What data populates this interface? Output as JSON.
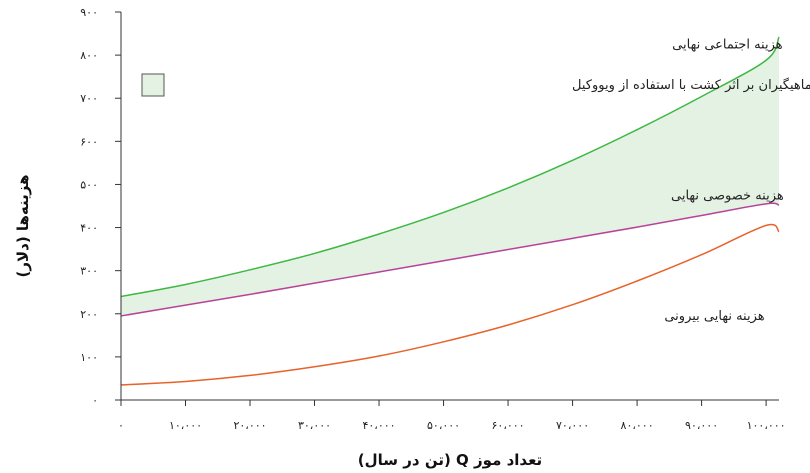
{
  "chart_data": {
    "type": "line",
    "xlabel": "تعداد موز Q (تن در سال)",
    "ylabel": "هزینه‌ها (دلار)",
    "xlim": [
      0,
      102000
    ],
    "ylim": [
      0,
      900
    ],
    "x_ticks": [
      0,
      10000,
      20000,
      30000,
      40000,
      50000,
      60000,
      70000,
      80000,
      90000,
      100000
    ],
    "x_tick_labels": [
      "۰",
      "۱۰،۰۰۰",
      "۲۰،۰۰۰",
      "۳۰،۰۰۰",
      "۴۰،۰۰۰",
      "۵۰،۰۰۰",
      "۶۰،۰۰۰",
      "۷۰،۰۰۰",
      "۸۰،۰۰۰",
      "۹۰،۰۰۰",
      "۱۰۰،۰۰۰"
    ],
    "y_ticks": [
      0,
      100,
      200,
      300,
      400,
      500,
      600,
      700,
      800,
      900
    ],
    "y_tick_labels": [
      "۰",
      "۱۰۰",
      "۲۰۰",
      "۳۰۰",
      "۴۰۰",
      "۵۰۰",
      "۶۰۰",
      "۷۰۰",
      "۸۰۰",
      "۹۰۰"
    ],
    "grid": false,
    "series": [
      {
        "name": "هزینه اجتماعی نهایی",
        "color": "#3db843",
        "x": [
          0,
          10000,
          20000,
          30000,
          40000,
          50000,
          60000,
          70000,
          80000,
          90000,
          100000,
          102000
        ],
        "y": [
          240,
          268,
          302,
          340,
          385,
          435,
          492,
          556,
          627,
          704,
          788,
          842
        ]
      },
      {
        "name": "هزینه خصوصی نهایی",
        "color": "#b9429b",
        "x": [
          0,
          10000,
          20000,
          30000,
          40000,
          50000,
          60000,
          70000,
          80000,
          90000,
          100000,
          102000
        ],
        "y": [
          195,
          220,
          245,
          271,
          297,
          323,
          349,
          375,
          401,
          428,
          455,
          452
        ]
      },
      {
        "name": "هزینه نهایی بیرونی",
        "color": "#e8622b",
        "x": [
          0,
          10000,
          20000,
          30000,
          40000,
          50000,
          60000,
          70000,
          80000,
          90000,
          100000,
          102000
        ],
        "y": [
          35,
          43,
          57,
          77,
          102,
          135,
          174,
          221,
          276,
          337,
          405,
          390
        ]
      }
    ],
    "shaded_region": {
      "label": "هزینه های تحمیل شده بر ماهیگیران بر اثر کشت با استفاده از ویووکیل",
      "fill_color": "#e4f2e4",
      "between": [
        "هزینه اجتماعی نهایی",
        "هزینه خصوصی نهایی"
      ]
    },
    "annotations": [
      {
        "text": "هزینه اجتماعی نهایی",
        "x": 94000,
        "y": 815
      },
      {
        "text": "هزینه خصوصی نهایی",
        "x": 94000,
        "y": 465
      },
      {
        "text": "هزینه نهایی بیرونی",
        "x": 92000,
        "y": 185
      }
    ],
    "legend_position": "top-left"
  }
}
